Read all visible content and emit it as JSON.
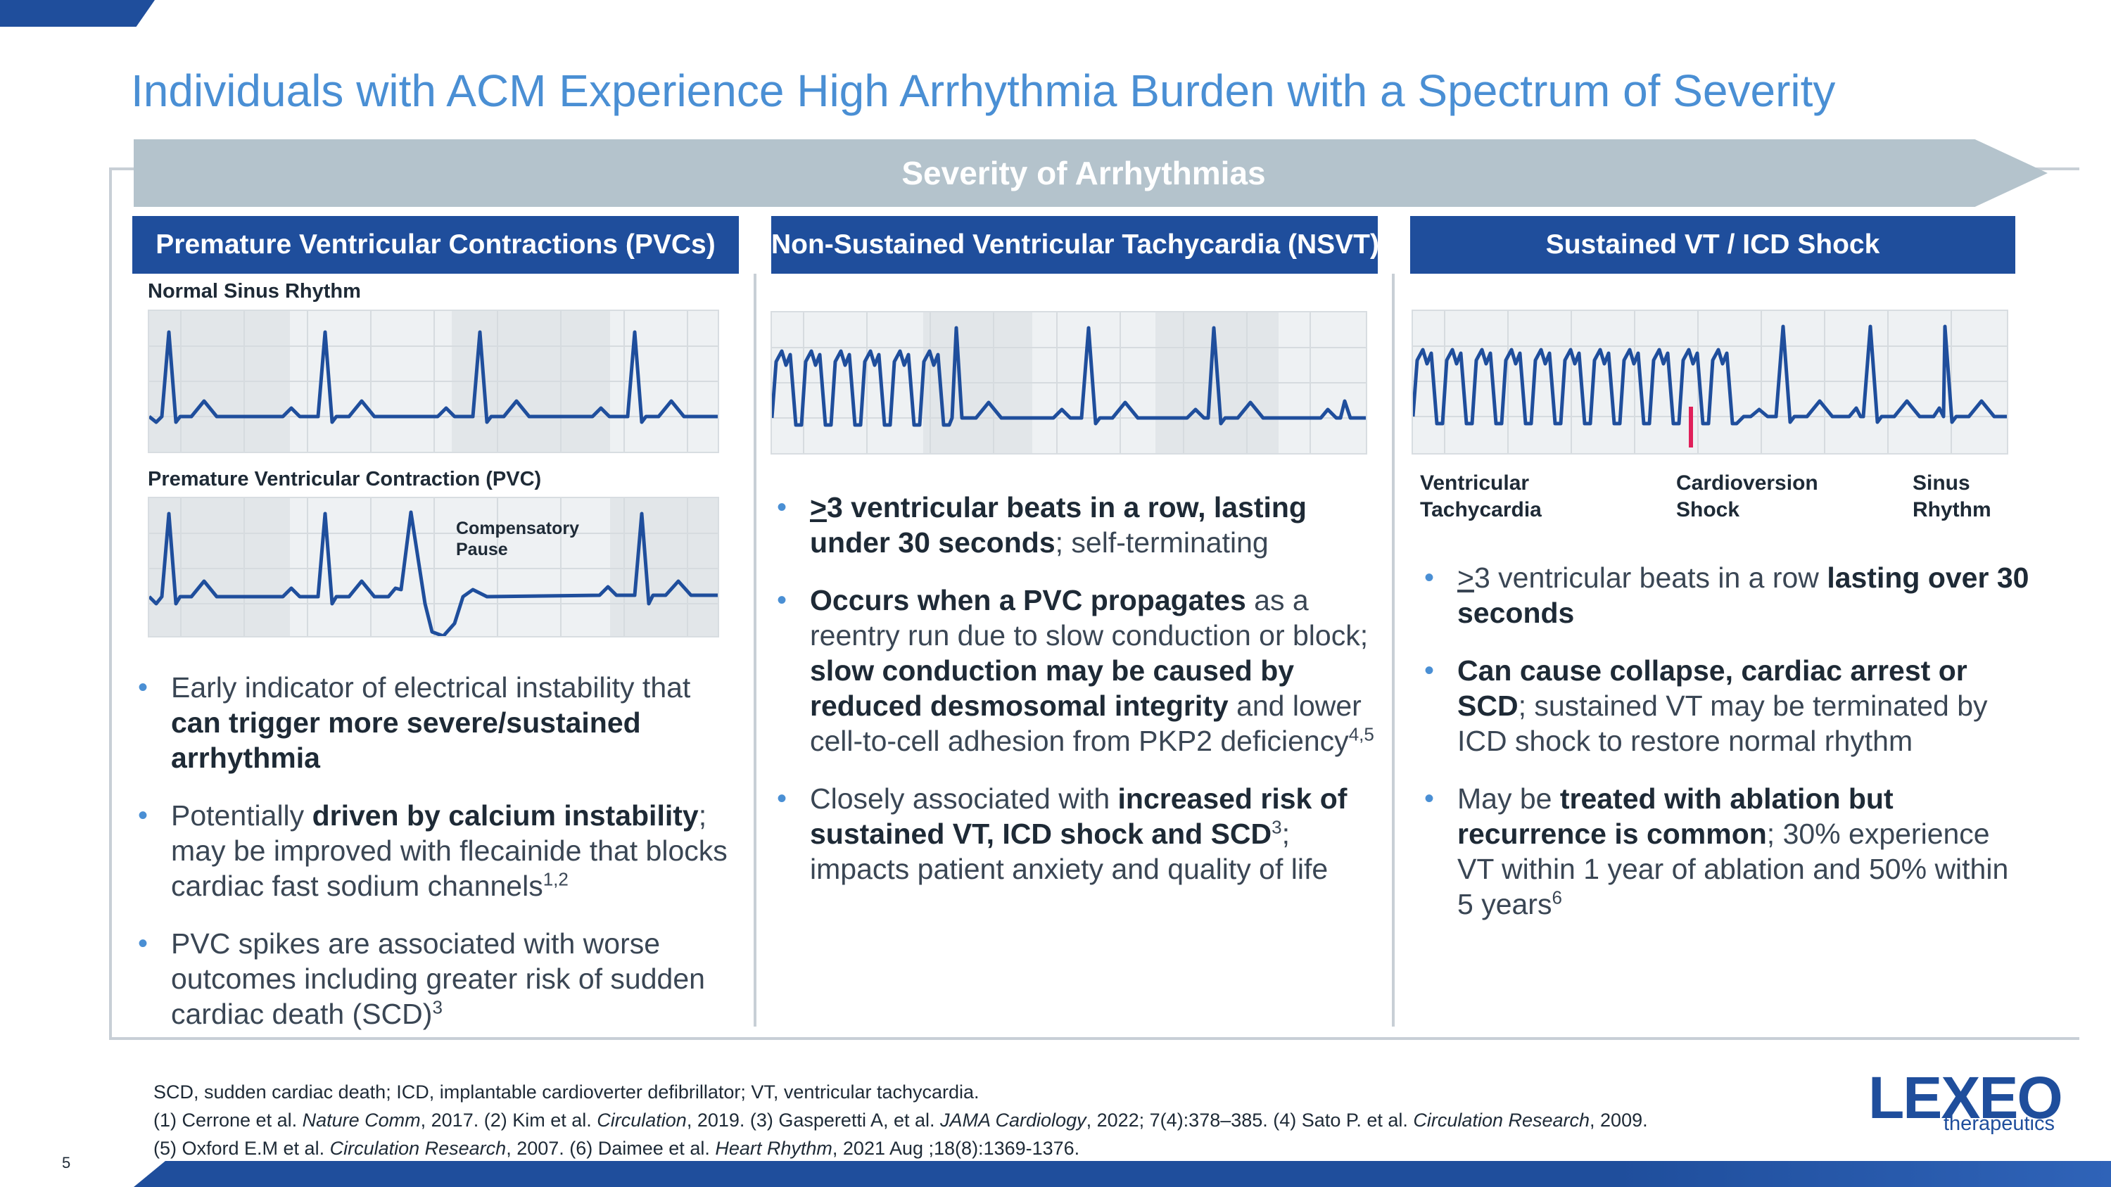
{
  "title": "Individuals with ACM Experience High Arrhythmia Burden with a Spectrum of Severity",
  "severity_label": "Severity of Arrhythmias",
  "columns": [
    {
      "header": "Premature Ventricular Contractions (PVCs)",
      "normal_label": "Normal Sinus Rhythm",
      "pvc_label": "Premature Ventricular Contraction (PVC)",
      "compensatory_label": "Compensatory Pause",
      "bullets": [
        {
          "segments": [
            {
              "t": "Early indicator of electrical instability that ",
              "b": false
            },
            {
              "t": "can trigger more severe/sustained arrhythmia",
              "b": true
            }
          ]
        },
        {
          "segments": [
            {
              "t": "Potentially ",
              "b": false
            },
            {
              "t": "driven by calcium instability",
              "b": true
            },
            {
              "t": "; may be improved with flecainide that blocks cardiac fast sodium channels",
              "b": false
            }
          ],
          "sup": "1,2"
        },
        {
          "segments": [
            {
              "t": "PVC spikes are associated with worse outcomes including greater risk of sudden cardiac death (SCD)",
              "b": false
            }
          ],
          "sup": "3"
        }
      ]
    },
    {
      "header": "Non-Sustained Ventricular Tachycardia (NSVT)",
      "bullets": [
        {
          "segments": [
            {
              "t": ">",
              "b": true,
              "u": true
            },
            {
              "t": "3 ventricular beats in a row, lasting under 30 seconds",
              "b": true
            },
            {
              "t": "; self-terminating",
              "b": false
            }
          ]
        },
        {
          "segments": [
            {
              "t": "Occurs when a PVC propagates",
              "b": true
            },
            {
              "t": " as a reentry run due to slow conduction or block; ",
              "b": false
            },
            {
              "t": "slow conduction may be caused by reduced desmosomal integrity",
              "b": true
            },
            {
              "t": " and lower cell-to-cell adhesion from PKP2 deficiency",
              "b": false
            }
          ],
          "sup": "4,5"
        },
        {
          "segments": [
            {
              "t": "Closely associated with ",
              "b": false
            },
            {
              "t": "increased risk of sustained VT, ICD shock and SCD",
              "b": true
            },
            {
              "t": "3",
              "sup": true
            },
            {
              "t": "; impacts patient anxiety and quality of life",
              "b": false
            }
          ]
        }
      ]
    },
    {
      "header": "Sustained VT / ICD Shock",
      "ecg_labels": [
        "Ventricular Tachycardia",
        "Cardioversion Shock",
        "Sinus Rhythm"
      ],
      "bullets": [
        {
          "segments": [
            {
              "t": ">",
              "b": false,
              "u": true
            },
            {
              "t": "3 ventricular beats in a row ",
              "b": false
            },
            {
              "t": "lasting over 30 seconds",
              "b": true
            }
          ]
        },
        {
          "segments": [
            {
              "t": "Can cause collapse, cardiac arrest or SCD",
              "b": true
            },
            {
              "t": "; sustained VT may be terminated by ICD shock to restore normal rhythm",
              "b": false
            }
          ]
        },
        {
          "segments": [
            {
              "t": "May be ",
              "b": false
            },
            {
              "t": "treated with ablation but recurrence is common",
              "b": true
            },
            {
              "t": "; 30% experience VT within 1 year of ablation and 50% within 5 years",
              "b": false
            }
          ],
          "sup": "6"
        }
      ]
    }
  ],
  "footnotes": {
    "abbrev": "SCD, sudden cardiac death; ICD, implantable cardioverter defibrillator; VT, ventricular tachycardia.",
    "refs_line1": [
      {
        "t": "(1) Cerrone et al. "
      },
      {
        "t": "Nature Comm",
        "i": true
      },
      {
        "t": ", 2017. (2) Kim et al. "
      },
      {
        "t": "Circulation",
        "i": true
      },
      {
        "t": ", 2019. (3) Gasperetti A, et al. "
      },
      {
        "t": "JAMA Cardiology",
        "i": true
      },
      {
        "t": ", 2022; 7(4):378–385. (4) Sato P. et al. "
      },
      {
        "t": "Circulation Research",
        "i": true
      },
      {
        "t": ", 2009."
      }
    ],
    "refs_line2": [
      {
        "t": "(5) Oxford E.M et al. "
      },
      {
        "t": "Circulation Research",
        "i": true
      },
      {
        "t": ", 2007. (6) Daimee et al. "
      },
      {
        "t": "Heart Rhythm",
        "i": true
      },
      {
        "t": ", 2021 Aug ;18(8):1369-1376."
      }
    ]
  },
  "page_number": "5",
  "logo": {
    "main": "LEXEO",
    "sub": "therapeutics"
  },
  "colors": {
    "primary": "#1f4e9c",
    "title": "#4a8fd4",
    "ecg_line": "#1f4e9c",
    "shock": "#e0205a",
    "arrow": "#b4c3cc"
  }
}
